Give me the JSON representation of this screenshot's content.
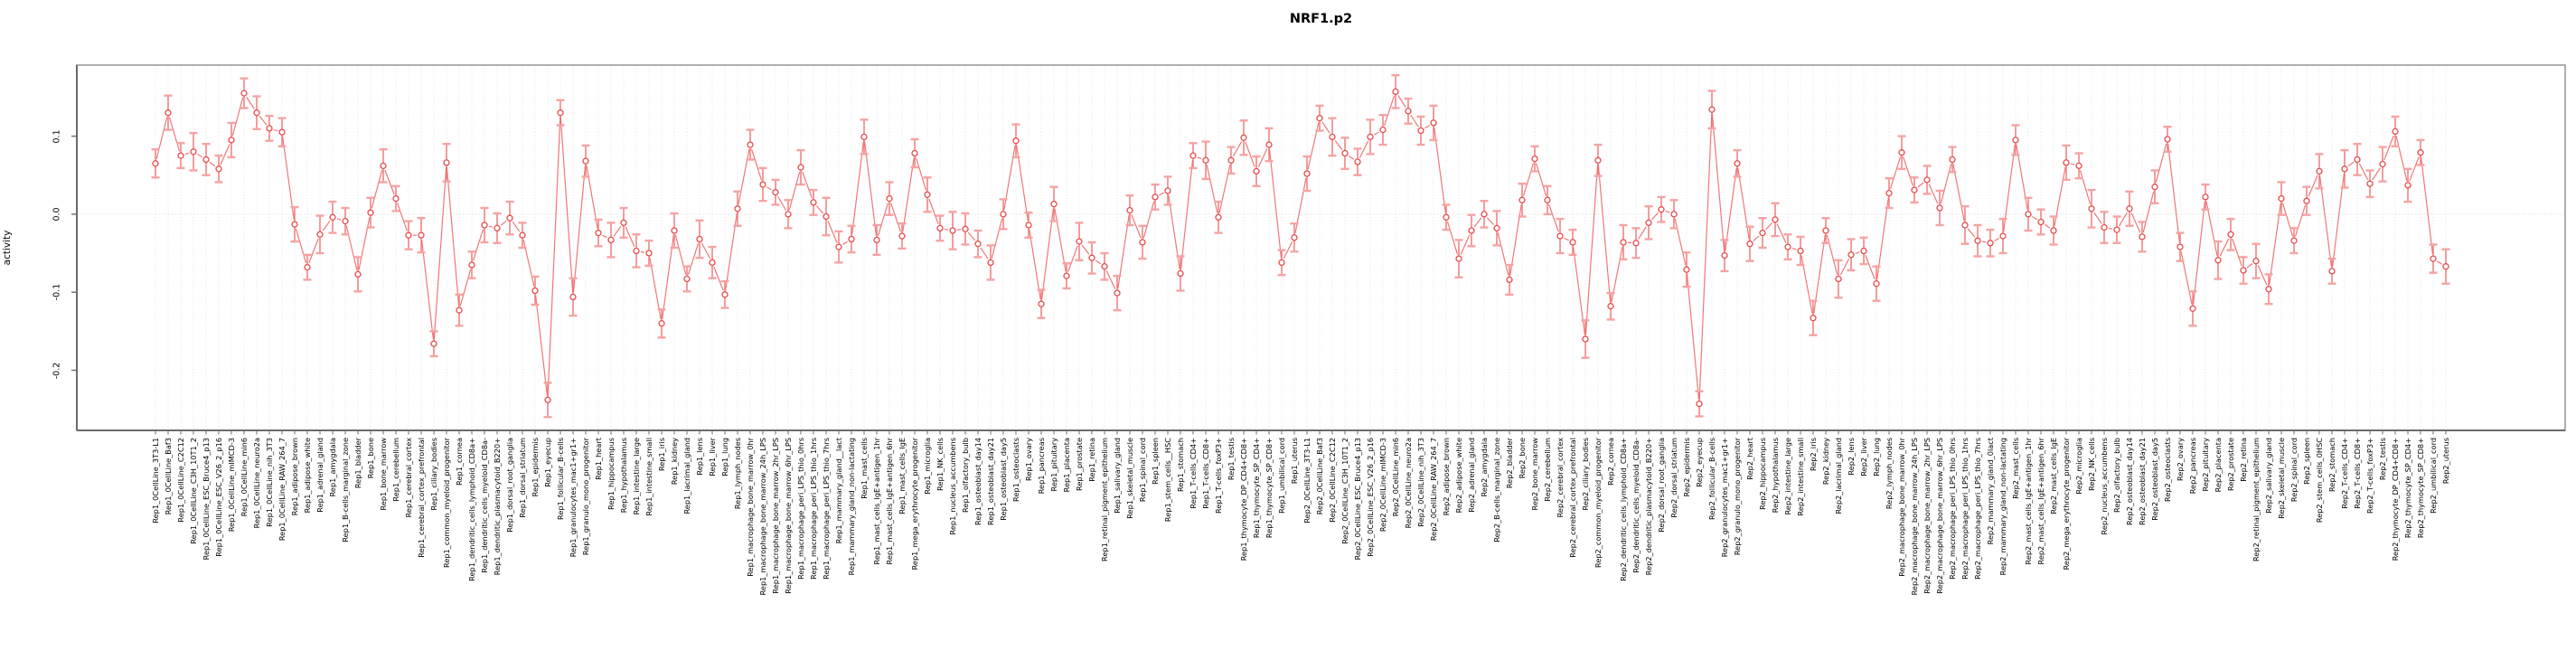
{
  "chart": {
    "title": "NRF1.p2",
    "ylabel": "activity"
  },
  "chart_data": {
    "type": "line",
    "title": "NRF1.p2",
    "xlabel": "",
    "ylabel": "activity",
    "legend": "none",
    "grid": "vertical dotted line per category; horizontal dotted line at y=0",
    "marker": "open-circle with error bars",
    "point_color": "#e84b4b",
    "errorbar_color": "#ef6e6e",
    "errorbar_cap_color": "#f6a3a3",
    "line_color": "#ee6060",
    "gridline_color": "#e3e3e3",
    "border_color": "#969696",
    "axis_color": "#6b6b6b",
    "ylim": [
      -0.277,
      0.191
    ],
    "yticks": [
      {
        "label": "0.1",
        "value": 0.1
      },
      {
        "label": "0.0",
        "value": 0.0
      },
      {
        "label": "-0.1",
        "value": -0.1
      },
      {
        "label": "-0.2",
        "value": -0.2
      }
    ],
    "categories": [
      "Rep1_0CellLine_3T3-L1",
      "Rep1_0CellLine_Baf3",
      "Rep1_0CellLine_C2C12",
      "Rep1_0CellLine_C3H_10T1_2",
      "Rep1_0CellLine_ESC_Bruce4_p13",
      "Rep1_0CellLine_ESC_V26_2_p16",
      "Rep1_0CellLine_mIMCD-3",
      "Rep1_0CellLine_min6",
      "Rep1_0CellLine_neuro2a",
      "Rep1_0CellLine_nih_3T3",
      "Rep1_0CellLine_RAW_264_7",
      "Rep1_adipose_brown",
      "Rep1_adipose_white",
      "Rep1_adrenal_gland",
      "Rep1_amygdala",
      "Rep1_B-cells_marginal_zone",
      "Rep1_bladder",
      "Rep1_bone",
      "Rep1_bone_marrow",
      "Rep1_cerebellum",
      "Rep1_cerebral_cortex",
      "Rep1_cerebral_cortex_prefrontal",
      "Rep1_ciliary_bodies",
      "Rep1_common_myeloid_progenitor",
      "Rep1_cornea",
      "Rep1_dendritic_cells_lymphoid_CD8a+",
      "Rep1_dendritic_cells_myeloid_CD8a-",
      "Rep1_dendritic_plasmacytoid_B220+",
      "Rep1_dorsal_root_ganglia",
      "Rep1_dorsal_striatum",
      "Rep1_epidermis",
      "Rep1_eyecup",
      "Rep1_follicular_B-cells",
      "Rep1_granulocytes_mac1+gr1+",
      "Rep1_granulo_mono_progenitor",
      "Rep1_heart",
      "Rep1_hippocampus",
      "Rep1_hypothalamus",
      "Rep1_intestine_large",
      "Rep1_intestine_small",
      "Rep1_iris",
      "Rep1_kidney",
      "Rep1_lacrimal_gland",
      "Rep1_lens",
      "Rep1_liver",
      "Rep1_lung",
      "Rep1_lymph_nodes",
      "Rep1_macrophage_bone_marrow_0hr",
      "Rep1_macrophage_bone_marrow_24h_LPS",
      "Rep1_macrophage_bone_marrow_2hr_LPS",
      "Rep1_macrophage_bone_marrow_6hr_LPS",
      "Rep1_macrophage_peri_LPS_thio_0hrs",
      "Rep1_macrophage_peri_LPS_thio_1hrs",
      "Rep1_macrophage_peri_LPS_thio_7hrs",
      "Rep1_mammary_gland__lact",
      "Rep1_mammary_gland_non-lactating",
      "Rep1_mast_cells",
      "Rep1_mast_cells_IgE+antigen_1hr",
      "Rep1_mast_cells_IgE+antigen_6hr",
      "Rep1_mast_cells_IgE",
      "Rep1_mega_erythrocyte_progenitor",
      "Rep1_microglia",
      "Rep1_NK_cells",
      "Rep1_nucleus_accumbens",
      "Rep1_olfactory_bulb",
      "Rep1_osteoblast_day14",
      "Rep1_osteoblast_day21",
      "Rep1_osteoblast_day5",
      "Rep1_osteoclasts",
      "Rep1_ovary",
      "Rep1_pancreas",
      "Rep1_pituitary",
      "Rep1_placenta",
      "Rep1_prostate",
      "Rep1_retina",
      "Rep1_retinal_pigment_epithelium",
      "Rep1_salivary_gland",
      "Rep1_skeletal_muscle",
      "Rep1_spinal_cord",
      "Rep1_spleen",
      "Rep1_stem_cells__HSC",
      "Rep1_stomach",
      "Rep1_T-cells_CD4+",
      "Rep1_T-cells_CD8+",
      "Rep1_T-cells_foxP3+",
      "Rep1_testis",
      "Rep1_thymocyte_DP_CD4+CD8+",
      "Rep1_thymocyte_SP_CD4+",
      "Rep1_thymocyte_SP_CD8+",
      "Rep1_umbilical_cord",
      "Rep1_uterus",
      "Rep2_0CellLine_3T3-L1",
      "Rep2_0CellLine_Baf3",
      "Rep2_0CellLine_C2C12",
      "Rep2_0CellLine_C3H_10T1_2",
      "Rep2_0CellLine_ESC_Bruce4_p13",
      "Rep2_0CellLine_ESC_V26_2_p16",
      "Rep2_0CellLine_mIMCD-3",
      "Rep2_0CellLine_min6",
      "Rep2_0CellLine_neuro2a",
      "Rep2_0CellLine_nih_3T3",
      "Rep2_0CellLine_RAW_264_7",
      "Rep2_adipose_brown",
      "Rep2_adipose_white",
      "Rep2_adrenal_gland",
      "Rep2_amygdala",
      "Rep2_B-cells_marginal_zone",
      "Rep2_bladder",
      "Rep2_bone",
      "Rep2_bone_marrow",
      "Rep2_cerebellum",
      "Rep2_cerebral_cortex",
      "Rep2_cerebral_cortex_prefrontal",
      "Rep2_ciliary_bodies",
      "Rep2_common_myeloid_progenitor",
      "Rep2_cornea",
      "Rep2_dendritic_cells_lymphoid_CD8a+",
      "Rep2_dendritic_cells_myeloid_CD8a-",
      "Rep2_dendritic_plasmacytoid_B220+",
      "Rep2_dorsal_root_ganglia",
      "Rep2_dorsal_striatum",
      "Rep2_epidermis",
      "Rep2_eyecup",
      "Rep2_follicular_B-cells",
      "Rep2_granulocytes_mac1+gr1+",
      "Rep2_granulo_mono_progenitor",
      "Rep2_heart",
      "Rep2_hippocampus",
      "Rep2_hypothalamus",
      "Rep2_intestine_large",
      "Rep2_intestine_small",
      "Rep2_iris",
      "Rep2_kidney",
      "Rep2_lacrimal_gland",
      "Rep2_lens",
      "Rep2_liver",
      "Rep2_lung",
      "Rep2_lymph_nodes",
      "Rep2_macrophage_bone_marrow_0hr",
      "Rep2_macrophage_bone_marrow_24h_LPS",
      "Rep2_macrophage_bone_marrow_2hr_LPS",
      "Rep2_macrophage_bone_marrow_6hr_LPS",
      "Rep2_macrophage_peri_LPS_thio_0hrs",
      "Rep2_macrophage_peri_LPS_thio_1hrs",
      "Rep2_macrophage_peri_LPS_thio_7hrs",
      "Rep2_mammary_gland_0lact",
      "Rep2_mammary_gland_non-lactating",
      "Rep2_mast_cells",
      "Rep2_mast_cells_IgE+antigen_1hr",
      "Rep2_mast_cells_IgE+antigen_6hr",
      "Rep2_mast_cells_IgE",
      "Rep2_mega_erythrocyte_progenitor",
      "Rep2_microglia",
      "Rep2_NK_cells",
      "Rep2_nucleus_accumbens",
      "Rep2_olfactory_bulb",
      "Rep2_osteoblast_day14",
      "Rep2_osteoblast_day21",
      "Rep2_osteoblast_day5",
      "Rep2_osteoclasts",
      "Rep2_ovary",
      "Rep2_pancreas",
      "Rep2_pituitary",
      "Rep2_placenta",
      "Rep2_prostate",
      "Rep2_retina",
      "Rep2_retinal_pigment_epithelium",
      "Rep2_salivary_gland",
      "Rep2_skeletal_muscle",
      "Rep2_spinal_cord",
      "Rep2_spleen",
      "Rep2_stem_cells_0HSC",
      "Rep2_stomach",
      "Rep2_T-cells_CD4+",
      "Rep2_T-cells_CD8+",
      "Rep2_T-cells_foxP3+",
      "Rep2_testis",
      "Rep2_thymocyte_DP_CD4+CD8+",
      "Rep2_thymocyte_SP_CD4+",
      "Rep2_thymocyte_SP_CD8+",
      "Rep2_umbilical_cord",
      "Rep2_uterus"
    ],
    "values": [
      0.065,
      0.13,
      0.075,
      0.08,
      0.07,
      0.058,
      0.095,
      0.155,
      0.13,
      0.11,
      0.105,
      -0.013,
      -0.068,
      -0.026,
      -0.004,
      -0.009,
      -0.077,
      0.002,
      0.062,
      0.02,
      -0.027,
      -0.027,
      -0.166,
      0.066,
      -0.123,
      -0.065,
      -0.014,
      -0.018,
      -0.005,
      -0.027,
      -0.098,
      -0.238,
      0.13,
      -0.106,
      0.068,
      -0.024,
      -0.033,
      -0.011,
      -0.047,
      -0.05,
      -0.14,
      -0.021,
      -0.083,
      -0.032,
      -0.062,
      -0.103,
      0.007,
      0.089,
      0.038,
      0.028,
      0.0,
      0.06,
      0.015,
      -0.003,
      -0.042,
      -0.032,
      0.099,
      -0.033,
      0.02,
      -0.028,
      0.078,
      0.025,
      -0.018,
      -0.021,
      -0.019,
      -0.038,
      -0.062,
      0.0,
      0.094,
      -0.014,
      -0.115,
      0.013,
      -0.079,
      -0.035,
      -0.056,
      -0.067,
      -0.101,
      0.005,
      -0.036,
      0.022,
      0.03,
      -0.076,
      0.075,
      0.069,
      -0.004,
      0.069,
      0.098,
      0.055,
      0.089,
      -0.062,
      -0.03,
      0.052,
      0.123,
      0.099,
      0.078,
      0.067,
      0.099,
      0.108,
      0.157,
      0.132,
      0.107,
      0.117,
      -0.004,
      -0.057,
      -0.021,
      0.0,
      -0.018,
      -0.084,
      0.018,
      0.071,
      0.018,
      -0.028,
      -0.036,
      -0.16,
      0.069,
      -0.118,
      -0.036,
      -0.037,
      -0.011,
      0.006,
      0.0,
      -0.071,
      -0.243,
      0.134,
      -0.053,
      0.065,
      -0.038,
      -0.024,
      -0.007,
      -0.042,
      -0.047,
      -0.133,
      -0.021,
      -0.083,
      -0.052,
      -0.047,
      -0.089,
      0.027,
      0.079,
      0.031,
      0.044,
      0.008,
      0.07,
      -0.014,
      -0.034,
      -0.037,
      -0.028,
      0.095,
      0.0,
      -0.01,
      -0.021,
      0.066,
      0.062,
      0.007,
      -0.017,
      -0.02,
      0.007,
      -0.029,
      0.035,
      0.096,
      -0.042,
      -0.121,
      0.022,
      -0.059,
      -0.026,
      -0.072,
      -0.06,
      -0.096,
      0.02,
      -0.034,
      0.017,
      0.055,
      -0.073,
      0.058,
      0.07,
      0.039,
      0.064,
      0.106,
      0.037,
      0.079,
      -0.057,
      -0.067
    ],
    "errors": [
      0.018,
      0.022,
      0.016,
      0.024,
      0.02,
      0.017,
      0.022,
      0.019,
      0.021,
      0.016,
      0.018,
      0.022,
      0.016,
      0.024,
      0.02,
      0.017,
      0.022,
      0.019,
      0.021,
      0.016,
      0.018,
      0.022,
      0.016,
      0.024,
      0.02,
      0.017,
      0.022,
      0.019,
      0.021,
      0.016,
      0.018,
      0.022,
      0.016,
      0.024,
      0.02,
      0.017,
      0.022,
      0.019,
      0.021,
      0.016,
      0.018,
      0.022,
      0.016,
      0.024,
      0.02,
      0.017,
      0.022,
      0.019,
      0.021,
      0.016,
      0.018,
      0.022,
      0.016,
      0.024,
      0.02,
      0.017,
      0.022,
      0.019,
      0.021,
      0.016,
      0.018,
      0.022,
      0.016,
      0.024,
      0.02,
      0.017,
      0.022,
      0.019,
      0.021,
      0.016,
      0.018,
      0.022,
      0.016,
      0.024,
      0.02,
      0.017,
      0.022,
      0.019,
      0.021,
      0.016,
      0.018,
      0.022,
      0.016,
      0.024,
      0.02,
      0.017,
      0.022,
      0.019,
      0.021,
      0.016,
      0.018,
      0.022,
      0.016,
      0.024,
      0.02,
      0.017,
      0.022,
      0.019,
      0.021,
      0.016,
      0.018,
      0.022,
      0.016,
      0.024,
      0.02,
      0.017,
      0.022,
      0.019,
      0.021,
      0.016,
      0.018,
      0.022,
      0.016,
      0.024,
      0.02,
      0.017,
      0.022,
      0.019,
      0.021,
      0.016,
      0.018,
      0.022,
      0.016,
      0.024,
      0.02,
      0.017,
      0.022,
      0.019,
      0.021,
      0.016,
      0.018,
      0.022,
      0.016,
      0.024,
      0.02,
      0.017,
      0.022,
      0.019,
      0.021,
      0.016,
      0.018,
      0.022,
      0.016,
      0.024,
      0.02,
      0.017,
      0.022,
      0.019,
      0.021,
      0.016,
      0.018,
      0.022,
      0.016,
      0.024,
      0.02,
      0.017,
      0.022,
      0.019,
      0.021,
      0.016,
      0.018,
      0.022,
      0.016,
      0.024,
      0.02,
      0.017,
      0.022,
      0.019,
      0.021,
      0.016,
      0.018,
      0.022,
      0.016,
      0.024,
      0.02,
      0.017,
      0.022,
      0.019,
      0.021,
      0.016,
      0.018,
      0.022
    ]
  }
}
